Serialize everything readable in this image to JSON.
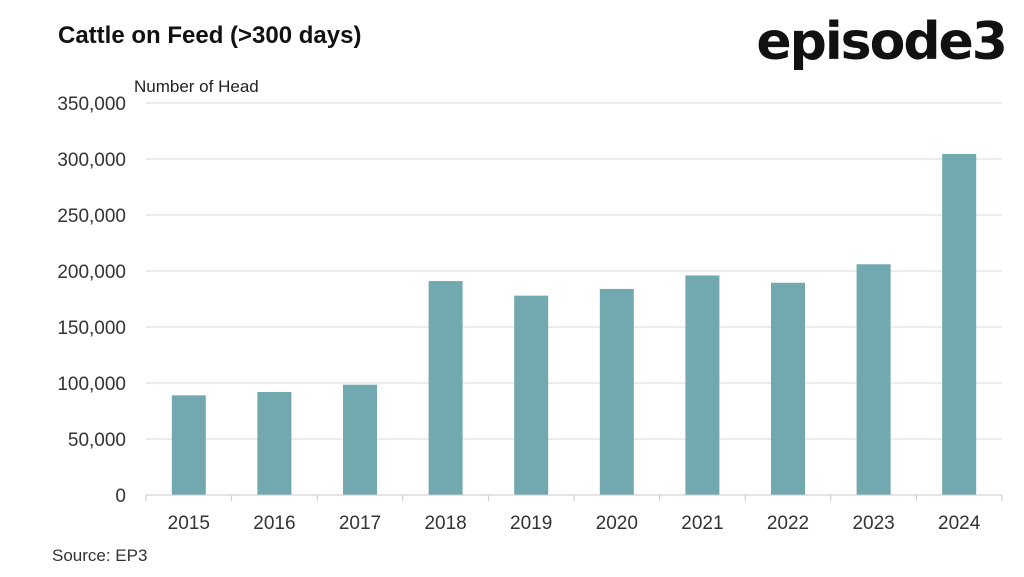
{
  "header": {
    "title": "Cattle on Feed (>300 days)",
    "logo": "episode3"
  },
  "footer": {
    "source": "Source: EP3"
  },
  "chart_data": {
    "type": "bar",
    "title": "Cattle on Feed (>300 days)",
    "ylabel": "Number of Head",
    "xlabel": "",
    "categories": [
      "2015",
      "2016",
      "2017",
      "2018",
      "2019",
      "2020",
      "2021",
      "2022",
      "2023",
      "2024"
    ],
    "values": [
      89000,
      92000,
      98500,
      191000,
      178000,
      184000,
      196000,
      189500,
      206000,
      304500
    ],
    "ylim": [
      0,
      350000
    ],
    "yticks": [
      0,
      50000,
      100000,
      150000,
      200000,
      250000,
      300000,
      350000
    ],
    "ytick_labels": [
      "0",
      "50,000",
      "100,000",
      "150,000",
      "200,000",
      "250,000",
      "300,000",
      "350,000"
    ],
    "grid": true,
    "bar_color": "#72a8b0",
    "grid_color": "#d9d9d9"
  }
}
